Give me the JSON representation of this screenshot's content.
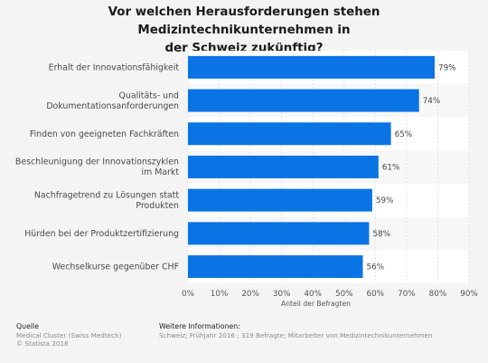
{
  "title": "Vor welchen Herausforderungen stehen Medizintechnikunternehmen in\nder Schweiz zukünftig?",
  "chart_data": {
    "type": "bar",
    "orientation": "horizontal",
    "categories": [
      [
        "Erhalt der Innovationsfähigkeit"
      ],
      [
        "Qualitäts- und",
        "Dokumentationsanforderungen"
      ],
      [
        "Finden von geeigneten Fachkräften"
      ],
      [
        "Beschleunigung der Innovationszyklen",
        "im Markt"
      ],
      [
        "Nachfragetrend zu Lösungen statt",
        "Produkten"
      ],
      [
        "Hürden bei der Produktzertifizierung"
      ],
      [
        "Wechselkurse gegenüber CHF"
      ]
    ],
    "values": [
      79,
      74,
      65,
      61,
      59,
      58,
      56
    ],
    "value_labels": [
      "79%",
      "74%",
      "65%",
      "61%",
      "59%",
      "58%",
      "56%"
    ],
    "xlabel": "Anteil der Befragten",
    "xlim": [
      0,
      90
    ],
    "xticks": [
      "0%",
      "10%",
      "20%",
      "30%",
      "40%",
      "50%",
      "60%",
      "70%",
      "80%",
      "90%"
    ],
    "grid": true,
    "bar_color": "#0a74e4"
  },
  "footer": {
    "source_heading": "Quelle",
    "source_lines": [
      "Medical Cluster (Swiss Medtech)",
      "© Statista 2018"
    ],
    "info_heading": "Weitere Informationen:",
    "info_text": "Schweiz; Frühjahr 2016 ; 319 Befragte; Mitarbeiter von Medizintechnikunternehmen"
  }
}
